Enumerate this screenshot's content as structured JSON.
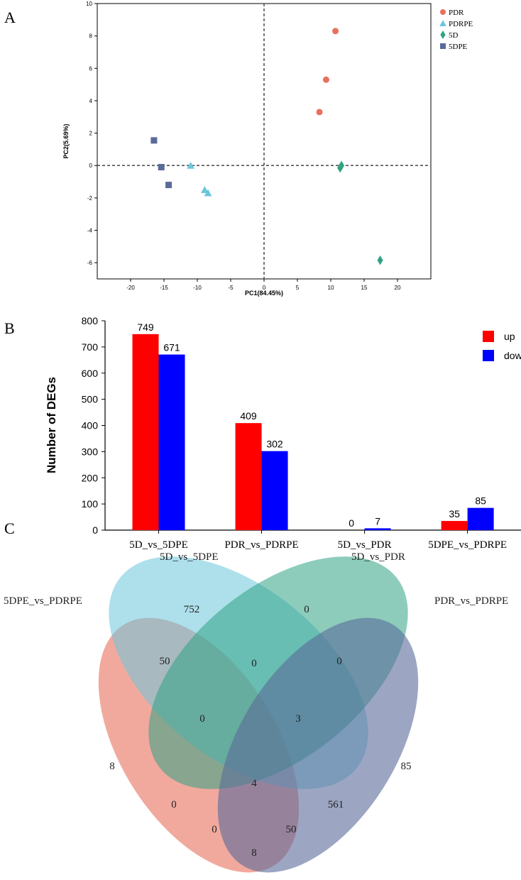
{
  "panel_labels": {
    "a": "A",
    "b": "B",
    "c": "C"
  },
  "chart_data": [
    {
      "type": "scatter",
      "panel": "A",
      "xlabel": "PC1(84.45%)",
      "ylabel": "PC2(5.69%)",
      "xlim": [
        -25,
        25
      ],
      "ylim": [
        -7,
        10
      ],
      "xticks": [
        -20,
        -15,
        -10,
        -5,
        0,
        5,
        10,
        15,
        20
      ],
      "yticks": [
        -6,
        -4,
        -2,
        0,
        2,
        4,
        6,
        8,
        10
      ],
      "tick_labels_x": [
        "-20",
        "-15",
        "-10",
        "-5",
        "0",
        "5",
        "10",
        "15",
        "20"
      ],
      "tick_labels_y": [
        "-6",
        "-4",
        "-2",
        "0",
        "2",
        "4",
        "6",
        "8",
        "10"
      ],
      "legend_position": "top-right",
      "series": [
        {
          "name": "PDR",
          "color": "#e8705e",
          "marker": "circle",
          "points": [
            [
              10.7,
              8.3
            ],
            [
              9.3,
              5.3
            ],
            [
              8.3,
              3.3
            ]
          ]
        },
        {
          "name": "PDRPE",
          "color": "#6cc6dd",
          "marker": "triangle",
          "points": [
            [
              -11.0,
              0.0
            ],
            [
              -8.9,
              -1.5
            ],
            [
              -8.4,
              -1.7
            ]
          ]
        },
        {
          "name": "5D",
          "color": "#2fa383",
          "marker": "diamond",
          "points": [
            [
              11.6,
              0.0
            ],
            [
              11.4,
              -0.15
            ],
            [
              17.4,
              -5.85
            ]
          ]
        },
        {
          "name": "5DPE",
          "color": "#5a6b9a",
          "marker": "square",
          "points": [
            [
              -16.5,
              1.55
            ],
            [
              -15.4,
              -0.1
            ],
            [
              -14.3,
              -1.2
            ]
          ]
        }
      ]
    },
    {
      "type": "bar",
      "panel": "B",
      "ylabel": "Number of DEGs",
      "ylim": [
        0,
        800
      ],
      "yticks": [
        0,
        100,
        200,
        300,
        400,
        500,
        600,
        700,
        800
      ],
      "tick_labels_y": [
        "0",
        "100",
        "200",
        "300",
        "400",
        "500",
        "600",
        "700",
        "800"
      ],
      "categories": [
        "5D_vs_5DPE",
        "PDR_vs_PDRPE",
        "5D_vs_PDR",
        "5DPE_vs_PDRPE"
      ],
      "legend_position": "top-right",
      "series": [
        {
          "name": "up",
          "color": "#ff0000",
          "values": [
            749,
            409,
            0,
            35
          ],
          "labels": [
            "749",
            "409",
            "0",
            "35"
          ]
        },
        {
          "name": "down",
          "color": "#0000ff",
          "values": [
            671,
            302,
            7,
            85
          ],
          "labels": [
            "671",
            "302",
            "7",
            "85"
          ]
        }
      ]
    },
    {
      "type": "venn",
      "panel": "C",
      "sets": [
        {
          "name": "5DPE_vs_PDRPE",
          "color": "#e8705e"
        },
        {
          "name": "5D_vs_5DPE",
          "color": "#6cc6dd"
        },
        {
          "name": "5D_vs_PDR",
          "color": "#2fa383"
        },
        {
          "name": "PDR_vs_PDRPE",
          "color": "#5a6b9a"
        }
      ],
      "regions": [
        {
          "sets": [
            "5D_vs_5DPE"
          ],
          "value": "752"
        },
        {
          "sets": [
            "5D_vs_PDR"
          ],
          "value": "0"
        },
        {
          "sets": [
            "5DPE_vs_PDRPE"
          ],
          "value": "8"
        },
        {
          "sets": [
            "PDR_vs_PDRPE"
          ],
          "value": "85"
        },
        {
          "sets": [
            "5D_vs_5DPE",
            "5D_vs_PDR"
          ],
          "value": "0"
        },
        {
          "sets": [
            "5DPE_vs_PDRPE",
            "5D_vs_5DPE"
          ],
          "value": "50"
        },
        {
          "sets": [
            "5D_vs_PDR",
            "PDR_vs_PDRPE"
          ],
          "value": "0"
        },
        {
          "sets": [
            "5DPE_vs_PDRPE",
            "5D_vs_5DPE",
            "5D_vs_PDR"
          ],
          "value": "0"
        },
        {
          "sets": [
            "5D_vs_5DPE",
            "5D_vs_PDR",
            "PDR_vs_PDRPE"
          ],
          "value": "3"
        },
        {
          "sets": [
            "5DPE_vs_PDRPE",
            "5D_vs_5DPE",
            "5D_vs_PDR",
            "PDR_vs_PDRPE"
          ],
          "value": "4"
        },
        {
          "sets": [
            "5DPE_vs_PDRPE",
            "5D_vs_PDR"
          ],
          "value": "0"
        },
        {
          "sets": [
            "5D_vs_5DPE",
            "PDR_vs_PDRPE"
          ],
          "value": "561"
        },
        {
          "sets": [
            "5DPE_vs_PDRPE",
            "5D_vs_PDR",
            "PDR_vs_PDRPE"
          ],
          "value": "0"
        },
        {
          "sets": [
            "5DPE_vs_PDRPE",
            "5D_vs_5DPE",
            "PDR_vs_PDRPE"
          ],
          "value": "50"
        },
        {
          "sets": [
            "5DPE_vs_PDRPE",
            "PDR_vs_PDRPE"
          ],
          "value": "8"
        }
      ]
    }
  ]
}
